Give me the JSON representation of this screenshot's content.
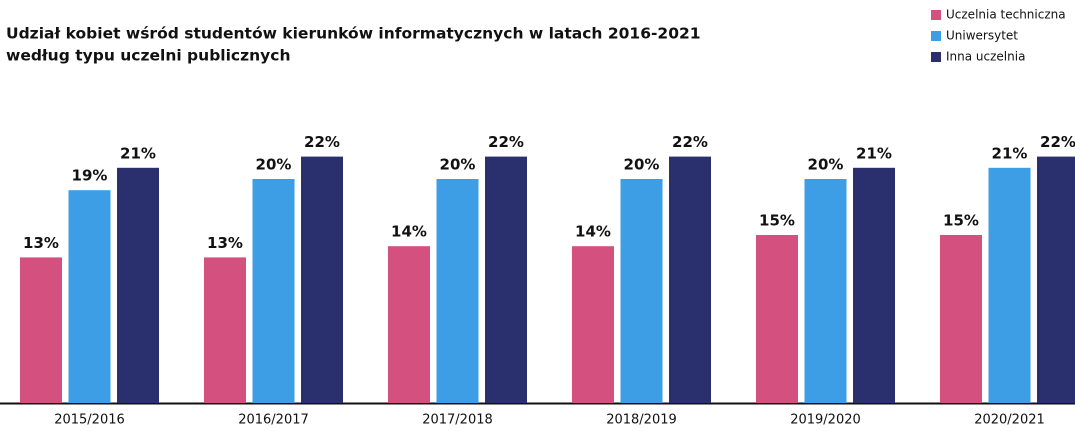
{
  "chart_data": {
    "type": "bar",
    "title_lines": [
      "Udział kobiet wśród studentów kierunków informatycznych w latach 2016-2021",
      "według typu uczelni publicznych"
    ],
    "categories": [
      "2015/2016",
      "2016/2017",
      "2017/2018",
      "2018/2019",
      "2019/2020",
      "2020/2021"
    ],
    "series": [
      {
        "name": "Uczelnia techniczna",
        "color": "#d4507e",
        "values": [
          13,
          13,
          14,
          14,
          15,
          15
        ],
        "value_labels": [
          "13%",
          "13%",
          "14%",
          "14%",
          "15%",
          "15%"
        ]
      },
      {
        "name": "Uniwersytet",
        "color": "#3d9ee5",
        "values": [
          19,
          20,
          20,
          20,
          20,
          21
        ],
        "value_labels": [
          "19%",
          "20%",
          "20%",
          "20%",
          "20%",
          "21%"
        ]
      },
      {
        "name": "Inna uczelnia",
        "color": "#2a2f6e",
        "values": [
          21,
          22,
          22,
          22,
          21,
          22
        ],
        "value_labels": [
          "21%",
          "22%",
          "22%",
          "22%",
          "21%",
          "22%"
        ]
      }
    ],
    "legend": "top-right"
  }
}
